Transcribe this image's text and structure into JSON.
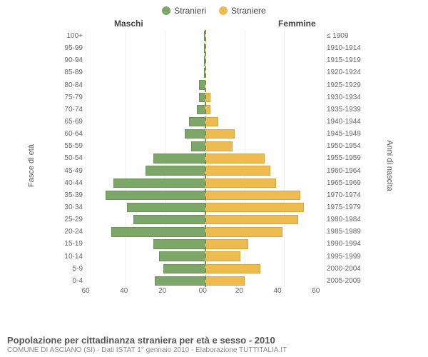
{
  "chart": {
    "type": "population-pyramid",
    "legend": [
      {
        "label": "Stranieri",
        "color": "#7da768"
      },
      {
        "label": "Straniere",
        "color": "#edbb4e"
      }
    ],
    "column_titles": {
      "left": "Maschi",
      "right": "Femmine"
    },
    "y_left_axis_label": "Fasce di età",
    "y_right_axis_label": "Anni di nascita",
    "x_axis": {
      "max": 60,
      "ticks_left": [
        "60",
        "40",
        "20",
        "0"
      ],
      "ticks_right": [
        "0",
        "20",
        "40",
        "60"
      ]
    },
    "colors": {
      "male": "#7da768",
      "male_border": "#6a915a",
      "female": "#edbb4e",
      "female_border": "#d6a63e",
      "background": "#ffffff",
      "grid": "#eeeeee",
      "centerline": "#888836",
      "text": "#555555"
    },
    "bar_height_ratio": 0.78,
    "rows": [
      {
        "age": "100+",
        "birth": "≤ 1909",
        "m": 0,
        "f": 0
      },
      {
        "age": "95-99",
        "birth": "1910-1914",
        "m": 0,
        "f": 0
      },
      {
        "age": "90-94",
        "birth": "1915-1919",
        "m": 0,
        "f": 0
      },
      {
        "age": "85-89",
        "birth": "1920-1924",
        "m": 0,
        "f": 0
      },
      {
        "age": "80-84",
        "birth": "1925-1929",
        "m": 3,
        "f": 0
      },
      {
        "age": "75-79",
        "birth": "1930-1934",
        "m": 3,
        "f": 3
      },
      {
        "age": "70-74",
        "birth": "1935-1939",
        "m": 4,
        "f": 3
      },
      {
        "age": "65-69",
        "birth": "1940-1944",
        "m": 8,
        "f": 7
      },
      {
        "age": "60-64",
        "birth": "1945-1949",
        "m": 10,
        "f": 15
      },
      {
        "age": "55-59",
        "birth": "1950-1954",
        "m": 7,
        "f": 14
      },
      {
        "age": "50-54",
        "birth": "1955-1959",
        "m": 26,
        "f": 30
      },
      {
        "age": "45-49",
        "birth": "1960-1964",
        "m": 30,
        "f": 33
      },
      {
        "age": "40-44",
        "birth": "1965-1969",
        "m": 46,
        "f": 36
      },
      {
        "age": "35-39",
        "birth": "1970-1974",
        "m": 50,
        "f": 48
      },
      {
        "age": "30-34",
        "birth": "1975-1979",
        "m": 39,
        "f": 50
      },
      {
        "age": "25-29",
        "birth": "1980-1984",
        "m": 36,
        "f": 47
      },
      {
        "age": "20-24",
        "birth": "1985-1989",
        "m": 47,
        "f": 39
      },
      {
        "age": "15-19",
        "birth": "1990-1994",
        "m": 26,
        "f": 22
      },
      {
        "age": "10-14",
        "birth": "1995-1999",
        "m": 23,
        "f": 18
      },
      {
        "age": "5-9",
        "birth": "2000-2004",
        "m": 21,
        "f": 28
      },
      {
        "age": "0-4",
        "birth": "2005-2009",
        "m": 25,
        "f": 20
      }
    ],
    "footer": {
      "title": "Popolazione per cittadinanza straniera per età e sesso - 2010",
      "subtitle": "COMUNE DI ASCIANO (SI) - Dati ISTAT 1° gennaio 2010 - Elaborazione TUTTITALIA.IT"
    }
  }
}
